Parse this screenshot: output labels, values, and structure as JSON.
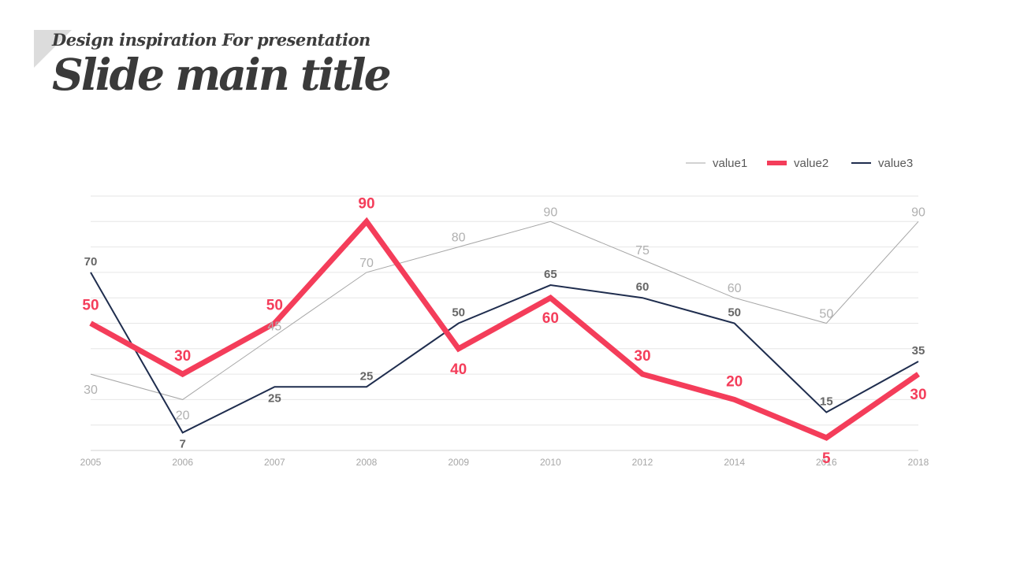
{
  "slide": {
    "subtitle": "Design inspiration For presentation",
    "title": "Slide main title"
  },
  "chart_data": {
    "type": "line",
    "categories": [
      "2005",
      "2006",
      "2007",
      "2008",
      "2009",
      "2010",
      "2012",
      "2014",
      "2016",
      "2018"
    ],
    "ylim": [
      0,
      100
    ],
    "grid": true,
    "legend": "top-right",
    "series": [
      {
        "name": "value1",
        "values": [
          30,
          20,
          45,
          70,
          80,
          90,
          75,
          60,
          50,
          90
        ],
        "color": "#a6a6a6"
      },
      {
        "name": "value2",
        "values": [
          50,
          30,
          50,
          90,
          40,
          60,
          30,
          20,
          5,
          30
        ],
        "color": "#f43d5a"
      },
      {
        "name": "value3",
        "values": [
          70,
          7,
          25,
          25,
          50,
          65,
          60,
          50,
          15,
          35
        ],
        "color": "#1f2d4e"
      }
    ]
  }
}
